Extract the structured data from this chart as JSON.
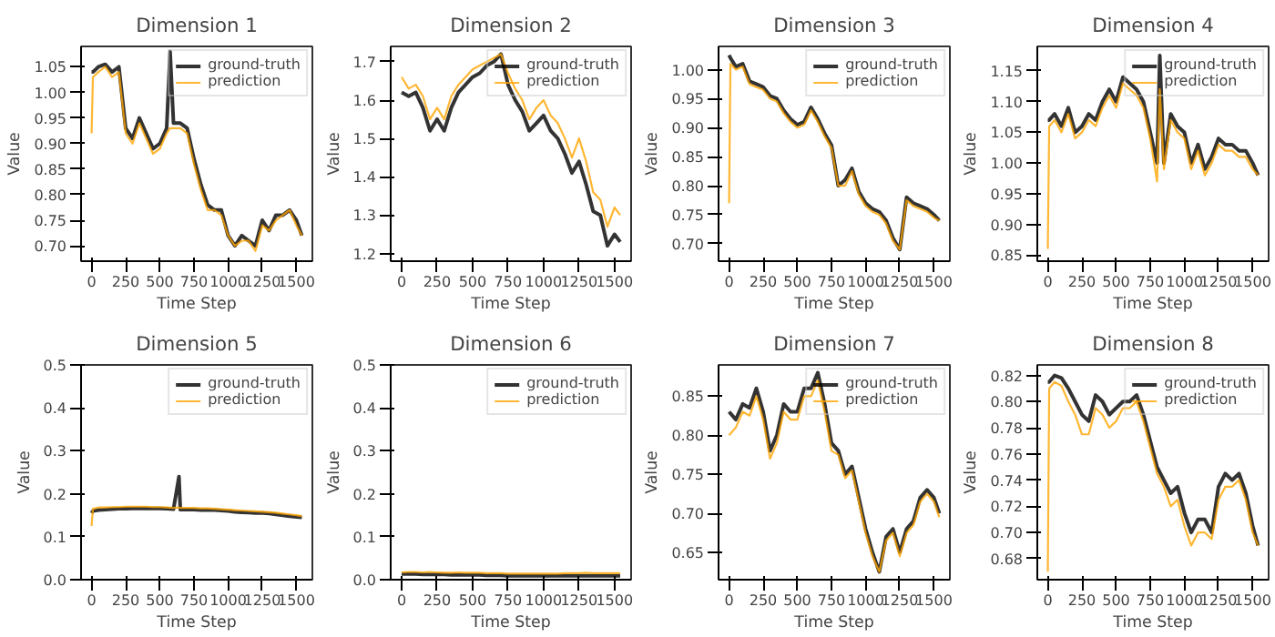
{
  "chart_data": [
    {
      "type": "line",
      "title": "Dimension 1",
      "xlabel": "Time Step",
      "ylabel": "Value",
      "legend": "top right",
      "grid": false,
      "xlim": [
        -77,
        1617
      ],
      "xticks": [
        0,
        250,
        500,
        750,
        1000,
        1250,
        1500
      ],
      "ylim": [
        0.67,
        1.09
      ],
      "yticks": [
        {
          "value": 0.7,
          "label": "0.70"
        },
        0.75,
        {
          "value": 0.8,
          "label": "0.80"
        },
        0.85,
        {
          "value": 0.9,
          "label": "0.90"
        },
        0.95,
        {
          "value": 1.0,
          "label": "1.00"
        },
        1.05
      ],
      "x": [
        0,
        10,
        50,
        100,
        150,
        200,
        250,
        300,
        350,
        400,
        450,
        500,
        550,
        575,
        600,
        650,
        700,
        750,
        800,
        850,
        900,
        950,
        1000,
        1050,
        1100,
        1150,
        1200,
        1250,
        1300,
        1350,
        1400,
        1450,
        1500,
        1540
      ],
      "series": [
        {
          "name": "ground-truth",
          "color": "#000000",
          "values": [
            1.04,
            1.04,
            1.05,
            1.055,
            1.04,
            1.05,
            0.93,
            0.91,
            0.95,
            0.92,
            0.89,
            0.9,
            0.93,
            1.08,
            0.94,
            0.94,
            0.93,
            0.87,
            0.82,
            0.78,
            0.77,
            0.77,
            0.72,
            0.7,
            0.72,
            0.71,
            0.7,
            0.75,
            0.73,
            0.76,
            0.76,
            0.77,
            0.75,
            0.72
          ]
        },
        {
          "name": "prediction",
          "color": "#ffa500",
          "values": [
            0.92,
            1.03,
            1.04,
            1.05,
            1.03,
            1.04,
            0.92,
            0.9,
            0.94,
            0.91,
            0.88,
            0.89,
            0.92,
            0.93,
            0.93,
            0.93,
            0.92,
            0.86,
            0.81,
            0.77,
            0.77,
            0.76,
            0.72,
            0.7,
            0.71,
            0.71,
            0.69,
            0.74,
            0.73,
            0.75,
            0.76,
            0.77,
            0.74,
            0.72
          ]
        }
      ]
    },
    {
      "type": "line",
      "title": "Dimension 2",
      "xlabel": "Time Step",
      "ylabel": "Value",
      "legend": "top right",
      "grid": false,
      "xlim": [
        -77,
        1617
      ],
      "xticks": [
        0,
        250,
        500,
        750,
        1000,
        1250,
        1500
      ],
      "ylim": [
        1.18,
        1.74
      ],
      "yticks": [
        1.2,
        1.3,
        1.4,
        1.5,
        1.6,
        1.7
      ],
      "x": [
        0,
        50,
        100,
        150,
        200,
        250,
        300,
        350,
        400,
        450,
        500,
        550,
        600,
        650,
        700,
        750,
        800,
        850,
        900,
        950,
        1000,
        1050,
        1100,
        1150,
        1200,
        1250,
        1300,
        1350,
        1400,
        1450,
        1500,
        1540
      ],
      "series": [
        {
          "name": "ground-truth",
          "color": "#000000",
          "values": [
            1.62,
            1.61,
            1.62,
            1.58,
            1.52,
            1.55,
            1.52,
            1.58,
            1.62,
            1.64,
            1.66,
            1.67,
            1.69,
            1.7,
            1.72,
            1.64,
            1.6,
            1.57,
            1.52,
            1.54,
            1.56,
            1.52,
            1.5,
            1.46,
            1.41,
            1.44,
            1.38,
            1.31,
            1.3,
            1.22,
            1.25,
            1.23
          ]
        },
        {
          "name": "prediction",
          "color": "#ffa500",
          "values": [
            1.66,
            1.63,
            1.64,
            1.61,
            1.55,
            1.58,
            1.55,
            1.61,
            1.64,
            1.66,
            1.68,
            1.69,
            1.7,
            1.71,
            1.72,
            1.67,
            1.63,
            1.6,
            1.55,
            1.58,
            1.6,
            1.56,
            1.54,
            1.5,
            1.45,
            1.5,
            1.44,
            1.36,
            1.34,
            1.27,
            1.32,
            1.3
          ]
        }
      ]
    },
    {
      "type": "line",
      "title": "Dimension 3",
      "xlabel": "Time Step",
      "ylabel": "Value",
      "legend": "top right",
      "grid": false,
      "xlim": [
        -77,
        1617
      ],
      "xticks": [
        0,
        250,
        500,
        750,
        1000,
        1250,
        1500
      ],
      "ylim": [
        0.67,
        1.04
      ],
      "yticks": [
        {
          "value": 0.7,
          "label": "0.70"
        },
        0.75,
        {
          "value": 0.8,
          "label": "0.80"
        },
        0.85,
        {
          "value": 0.9,
          "label": "0.90"
        },
        0.95,
        {
          "value": 1.0,
          "label": "1.00"
        }
      ],
      "x": [
        0,
        10,
        50,
        100,
        150,
        200,
        250,
        300,
        350,
        400,
        450,
        500,
        550,
        600,
        650,
        700,
        750,
        800,
        850,
        900,
        950,
        1000,
        1050,
        1100,
        1150,
        1200,
        1250,
        1300,
        1350,
        1400,
        1450,
        1500,
        1540
      ],
      "series": [
        {
          "name": "ground-truth",
          "color": "#000000",
          "values": [
            1.025,
            1.02,
            1.005,
            1.01,
            0.98,
            0.975,
            0.97,
            0.955,
            0.95,
            0.93,
            0.915,
            0.905,
            0.91,
            0.935,
            0.915,
            0.89,
            0.87,
            0.8,
            0.81,
            0.83,
            0.79,
            0.77,
            0.76,
            0.755,
            0.74,
            0.71,
            0.69,
            0.78,
            0.77,
            0.765,
            0.76,
            0.75,
            0.74
          ]
        },
        {
          "name": "prediction",
          "color": "#ffa500",
          "values": [
            0.77,
            1.01,
            1.0,
            1.005,
            0.975,
            0.97,
            0.965,
            0.95,
            0.945,
            0.925,
            0.91,
            0.9,
            0.905,
            0.93,
            0.91,
            0.885,
            0.865,
            0.8,
            0.8,
            0.825,
            0.785,
            0.765,
            0.755,
            0.75,
            0.735,
            0.705,
            0.69,
            0.775,
            0.765,
            0.76,
            0.755,
            0.745,
            0.74
          ]
        }
      ]
    },
    {
      "type": "line",
      "title": "Dimension 4",
      "xlabel": "Time Step",
      "ylabel": "Value",
      "legend": "top right",
      "grid": false,
      "xlim": [
        -77,
        1617
      ],
      "xticks": [
        0,
        250,
        500,
        750,
        1000,
        1250,
        1500
      ],
      "ylim": [
        0.84,
        1.19
      ],
      "yticks": [
        0.85,
        {
          "value": 0.9,
          "label": "0.90"
        },
        0.95,
        {
          "value": 1.0,
          "label": "1.00"
        },
        1.05,
        {
          "value": 1.1,
          "label": "1.10"
        },
        1.15
      ],
      "x": [
        0,
        10,
        50,
        100,
        150,
        200,
        250,
        300,
        350,
        400,
        450,
        500,
        550,
        600,
        650,
        700,
        750,
        800,
        820,
        850,
        900,
        950,
        1000,
        1050,
        1100,
        1150,
        1200,
        1250,
        1300,
        1350,
        1400,
        1450,
        1500,
        1540
      ],
      "series": [
        {
          "name": "ground-truth",
          "color": "#000000",
          "values": [
            1.07,
            1.07,
            1.08,
            1.06,
            1.09,
            1.05,
            1.06,
            1.08,
            1.07,
            1.1,
            1.12,
            1.1,
            1.14,
            1.13,
            1.12,
            1.1,
            1.05,
            1.0,
            1.175,
            1.0,
            1.08,
            1.06,
            1.05,
            1.0,
            1.03,
            0.99,
            1.01,
            1.04,
            1.03,
            1.03,
            1.02,
            1.02,
            1.0,
            0.98
          ]
        },
        {
          "name": "prediction",
          "color": "#ffa500",
          "values": [
            0.86,
            1.06,
            1.07,
            1.05,
            1.08,
            1.04,
            1.05,
            1.07,
            1.06,
            1.09,
            1.11,
            1.09,
            1.13,
            1.12,
            1.11,
            1.09,
            1.04,
            0.97,
            1.12,
            0.99,
            1.07,
            1.05,
            1.04,
            0.99,
            1.02,
            0.98,
            1.0,
            1.03,
            1.02,
            1.02,
            1.01,
            1.01,
            0.99,
            0.98
          ]
        }
      ]
    },
    {
      "type": "line",
      "title": "Dimension 5",
      "xlabel": "Time Step",
      "ylabel": "Value",
      "legend": "top right",
      "grid": false,
      "xlim": [
        -77,
        1617
      ],
      "xticks": [
        0,
        250,
        500,
        750,
        1000,
        1250,
        1500
      ],
      "ylim": [
        0,
        0.5
      ],
      "yticks": [
        {
          "value": 0,
          "label": "0.0"
        },
        0.1,
        0.2,
        0.3,
        0.4,
        0.5
      ],
      "x": [
        0,
        10,
        50,
        100,
        150,
        200,
        250,
        300,
        350,
        400,
        450,
        500,
        550,
        600,
        640,
        650,
        700,
        750,
        800,
        850,
        900,
        950,
        1000,
        1050,
        1100,
        1150,
        1200,
        1250,
        1300,
        1350,
        1400,
        1450,
        1500,
        1540
      ],
      "series": [
        {
          "name": "ground-truth",
          "color": "#000000",
          "values": [
            0.155,
            0.16,
            0.162,
            0.163,
            0.164,
            0.165,
            0.165,
            0.166,
            0.166,
            0.166,
            0.166,
            0.166,
            0.165,
            0.164,
            0.24,
            0.163,
            0.163,
            0.163,
            0.162,
            0.162,
            0.162,
            0.161,
            0.16,
            0.158,
            0.157,
            0.156,
            0.155,
            0.155,
            0.154,
            0.152,
            0.15,
            0.148,
            0.146,
            0.145
          ]
        },
        {
          "name": "prediction",
          "color": "#ffa500",
          "values": [
            0.125,
            0.165,
            0.168,
            0.168,
            0.169,
            0.169,
            0.17,
            0.17,
            0.17,
            0.17,
            0.169,
            0.169,
            0.168,
            0.167,
            0.168,
            0.167,
            0.167,
            0.167,
            0.166,
            0.166,
            0.165,
            0.164,
            0.163,
            0.162,
            0.161,
            0.16,
            0.159,
            0.158,
            0.157,
            0.156,
            0.154,
            0.152,
            0.15,
            0.148
          ]
        }
      ]
    },
    {
      "type": "line",
      "title": "Dimension 6",
      "xlabel": "Time Step",
      "ylabel": "Value",
      "legend": "top right",
      "grid": false,
      "xlim": [
        -77,
        1617
      ],
      "xticks": [
        0,
        250,
        500,
        750,
        1000,
        1250,
        1500
      ],
      "ylim": [
        0,
        0.5
      ],
      "yticks": [
        {
          "value": 0,
          "label": "0.0"
        },
        0.1,
        0.2,
        0.3,
        0.4,
        0.5
      ],
      "x": [
        0,
        50,
        100,
        150,
        200,
        250,
        300,
        350,
        400,
        450,
        500,
        550,
        600,
        650,
        700,
        750,
        800,
        850,
        900,
        950,
        1000,
        1050,
        1100,
        1150,
        1200,
        1250,
        1300,
        1350,
        1400,
        1450,
        1500,
        1540
      ],
      "series": [
        {
          "name": "ground-truth",
          "color": "#000000",
          "values": [
            0.013,
            0.013,
            0.013,
            0.012,
            0.012,
            0.012,
            0.012,
            0.011,
            0.011,
            0.011,
            0.011,
            0.011,
            0.01,
            0.01,
            0.01,
            0.009,
            0.009,
            0.009,
            0.009,
            0.009,
            0.009,
            0.009,
            0.009,
            0.009,
            0.009,
            0.009,
            0.009,
            0.009,
            0.009,
            0.009,
            0.009,
            0.009
          ]
        },
        {
          "name": "prediction",
          "color": "#ffa500",
          "values": [
            0.017,
            0.018,
            0.018,
            0.017,
            0.018,
            0.017,
            0.016,
            0.016,
            0.017,
            0.016,
            0.016,
            0.016,
            0.015,
            0.015,
            0.015,
            0.014,
            0.014,
            0.014,
            0.014,
            0.014,
            0.014,
            0.014,
            0.014,
            0.015,
            0.015,
            0.015,
            0.016,
            0.015,
            0.015,
            0.015,
            0.015,
            0.015
          ]
        }
      ]
    },
    {
      "type": "line",
      "title": "Dimension 7",
      "xlabel": "Time Step",
      "ylabel": "Value",
      "legend": "top right",
      "grid": false,
      "xlim": [
        -77,
        1617
      ],
      "xticks": [
        0,
        250,
        500,
        750,
        1000,
        1250,
        1500
      ],
      "ylim": [
        0.615,
        0.89
      ],
      "yticks": [
        0.65,
        {
          "value": 0.7,
          "label": "0.70"
        },
        0.75,
        {
          "value": 0.8,
          "label": "0.80"
        },
        0.85
      ],
      "x": [
        0,
        50,
        100,
        150,
        200,
        250,
        300,
        350,
        400,
        450,
        500,
        550,
        600,
        650,
        700,
        750,
        800,
        850,
        900,
        950,
        1000,
        1050,
        1100,
        1150,
        1200,
        1250,
        1300,
        1350,
        1400,
        1450,
        1500,
        1540
      ],
      "series": [
        {
          "name": "ground-truth",
          "color": "#000000",
          "values": [
            0.83,
            0.82,
            0.84,
            0.835,
            0.86,
            0.83,
            0.78,
            0.8,
            0.84,
            0.83,
            0.83,
            0.86,
            0.86,
            0.88,
            0.84,
            0.79,
            0.78,
            0.75,
            0.76,
            0.72,
            0.68,
            0.65,
            0.625,
            0.67,
            0.68,
            0.65,
            0.68,
            0.69,
            0.72,
            0.73,
            0.72,
            0.7
          ]
        },
        {
          "name": "prediction",
          "color": "#ffa500",
          "values": [
            0.8,
            0.81,
            0.83,
            0.825,
            0.85,
            0.82,
            0.77,
            0.79,
            0.83,
            0.82,
            0.82,
            0.85,
            0.85,
            0.87,
            0.83,
            0.78,
            0.775,
            0.745,
            0.755,
            0.715,
            0.675,
            0.645,
            0.625,
            0.665,
            0.675,
            0.645,
            0.675,
            0.685,
            0.715,
            0.725,
            0.715,
            0.695
          ]
        }
      ]
    },
    {
      "type": "line",
      "title": "Dimension 8",
      "xlabel": "Time Step",
      "ylabel": "Value",
      "legend": "top right",
      "grid": false,
      "xlim": [
        -77,
        1617
      ],
      "xticks": [
        0,
        250,
        500,
        750,
        1000,
        1250,
        1500
      ],
      "ylim": [
        0.664,
        0.828
      ],
      "yticks": [
        0.68,
        {
          "value": 0.7,
          "label": "0.70"
        },
        0.72,
        0.74,
        0.76,
        0.78,
        {
          "value": 0.8,
          "label": "0.80"
        },
        0.82
      ],
      "x": [
        0,
        10,
        50,
        100,
        150,
        200,
        250,
        300,
        350,
        400,
        450,
        500,
        550,
        600,
        650,
        700,
        750,
        800,
        850,
        900,
        950,
        1000,
        1050,
        1100,
        1150,
        1200,
        1250,
        1300,
        1350,
        1400,
        1450,
        1500,
        1540
      ],
      "series": [
        {
          "name": "ground-truth",
          "color": "#000000",
          "values": [
            0.815,
            0.815,
            0.82,
            0.818,
            0.81,
            0.8,
            0.79,
            0.785,
            0.805,
            0.8,
            0.79,
            0.795,
            0.8,
            0.8,
            0.805,
            0.79,
            0.77,
            0.75,
            0.74,
            0.73,
            0.735,
            0.715,
            0.7,
            0.71,
            0.71,
            0.7,
            0.735,
            0.745,
            0.74,
            0.745,
            0.73,
            0.705,
            0.69
          ]
        },
        {
          "name": "prediction",
          "color": "#ffa500",
          "values": [
            0.67,
            0.81,
            0.815,
            0.812,
            0.8,
            0.79,
            0.775,
            0.775,
            0.795,
            0.79,
            0.78,
            0.785,
            0.795,
            0.795,
            0.8,
            0.785,
            0.765,
            0.745,
            0.735,
            0.72,
            0.725,
            0.705,
            0.69,
            0.7,
            0.7,
            0.695,
            0.725,
            0.735,
            0.735,
            0.74,
            0.725,
            0.7,
            0.69
          ]
        }
      ]
    }
  ]
}
